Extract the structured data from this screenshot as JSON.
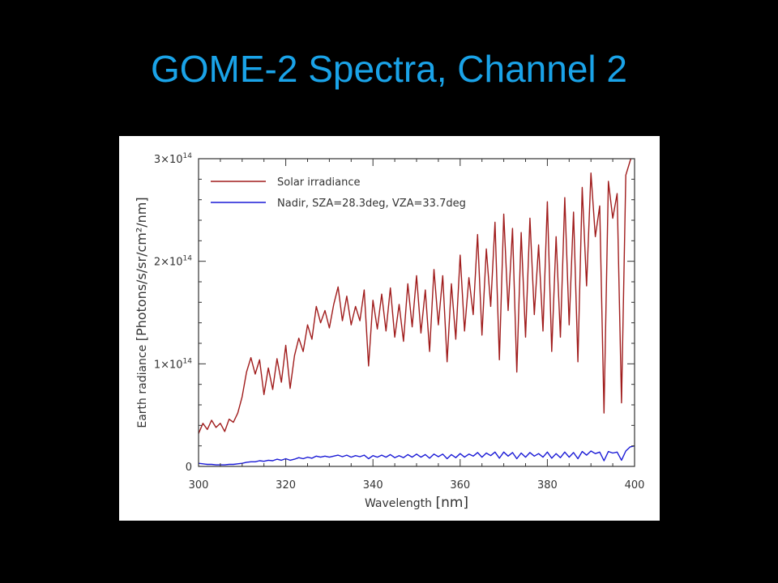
{
  "slide": {
    "title": "GOME-2 Spectra, Channel 2"
  },
  "chart_data": {
    "type": "line",
    "xlabel_main": "Wavelength ",
    "xlabel_unit": "[nm]",
    "ylabel_main": "Earth radiance ",
    "ylabel_unit": "[Photons/s/sr/cm²/nm]",
    "xlim": [
      300,
      400
    ],
    "ylim": [
      0,
      300000000000000.0
    ],
    "x_ticks": [
      300,
      320,
      340,
      360,
      380,
      400
    ],
    "y_ticks": [
      {
        "value": 0,
        "mant": "0",
        "exp": ""
      },
      {
        "value": 100000000000000.0,
        "mant": "1×10",
        "exp": "14"
      },
      {
        "value": 200000000000000.0,
        "mant": "2×10",
        "exp": "14"
      },
      {
        "value": 300000000000000.0,
        "mant": "3×10",
        "exp": "14"
      }
    ],
    "legend": {
      "placement": "top-left"
    },
    "grid": false,
    "series": [
      {
        "name": "Solar irradiance",
        "color": "#a01c1c",
        "x": [
          300,
          301,
          302,
          303,
          304,
          305,
          306,
          307,
          308,
          309,
          310,
          311,
          312,
          313,
          314,
          315,
          316,
          317,
          318,
          319,
          320,
          321,
          322,
          323,
          324,
          325,
          326,
          327,
          328,
          329,
          330,
          331,
          332,
          333,
          334,
          335,
          336,
          337,
          338,
          339,
          340,
          341,
          342,
          343,
          344,
          345,
          346,
          347,
          348,
          349,
          350,
          351,
          352,
          353,
          354,
          355,
          356,
          357,
          358,
          359,
          360,
          361,
          362,
          363,
          364,
          365,
          366,
          367,
          368,
          369,
          370,
          371,
          372,
          373,
          374,
          375,
          376,
          377,
          378,
          379,
          380,
          381,
          382,
          383,
          384,
          385,
          386,
          387,
          388,
          389,
          390,
          391,
          392,
          393,
          394,
          395,
          396,
          397,
          398,
          399,
          400
        ],
        "values": [
          32000000000000.0,
          42000000000000.0,
          36000000000000.0,
          45000000000000.0,
          38000000000000.0,
          42000000000000.0,
          34000000000000.0,
          46000000000000.0,
          43000000000000.0,
          52000000000000.0,
          68000000000000.0,
          92000000000000.0,
          106000000000000.0,
          90000000000000.0,
          104000000000000.0,
          70000000000000.0,
          96000000000000.0,
          75000000000000.0,
          105000000000000.0,
          82000000000000.0,
          118000000000000.0,
          76000000000000.0,
          108000000000000.0,
          125000000000000.0,
          112000000000000.0,
          138000000000000.0,
          124000000000000.0,
          156000000000000.0,
          140000000000000.0,
          152000000000000.0,
          135000000000000.0,
          158000000000000.0,
          175000000000000.0,
          142000000000000.0,
          166000000000000.0,
          138000000000000.0,
          156000000000000.0,
          142000000000000.0,
          172000000000000.0,
          98000000000000.0,
          162000000000000.0,
          134000000000000.0,
          168000000000000.0,
          132000000000000.0,
          174000000000000.0,
          126000000000000.0,
          158000000000000.0,
          122000000000000.0,
          178000000000000.0,
          136000000000000.0,
          186000000000000.0,
          130000000000000.0,
          172000000000000.0,
          112000000000000.0,
          192000000000000.0,
          138000000000000.0,
          186000000000000.0,
          102000000000000.0,
          178000000000000.0,
          124000000000000.0,
          206000000000000.0,
          132000000000000.0,
          184000000000000.0,
          148000000000000.0,
          226000000000000.0,
          128000000000000.0,
          212000000000000.0,
          156000000000000.0,
          238000000000000.0,
          104000000000000.0,
          246000000000000.0,
          152000000000000.0,
          232000000000000.0,
          92000000000000.0,
          228000000000000.0,
          126000000000000.0,
          242000000000000.0,
          148000000000000.0,
          216000000000000.0,
          132000000000000.0,
          258000000000000.0,
          112000000000000.0,
          224000000000000.0,
          126000000000000.0,
          262000000000000.0,
          138000000000000.0,
          248000000000000.0,
          102000000000000.0,
          272000000000000.0,
          176000000000000.0,
          286000000000000.0,
          224000000000000.0,
          254000000000000.0,
          52000000000000.0,
          278000000000000.0,
          242000000000000.0,
          266000000000000.0,
          62000000000000.0,
          284000000000000.0,
          298000000000000.0,
          310000000000000.0
        ]
      },
      {
        "name": "Nadir, SZA=28.3deg, VZA=33.7deg",
        "color": "#1a1ad6",
        "x": [
          300,
          301,
          302,
          303,
          304,
          305,
          306,
          307,
          308,
          309,
          310,
          311,
          312,
          313,
          314,
          315,
          316,
          317,
          318,
          319,
          320,
          321,
          322,
          323,
          324,
          325,
          326,
          327,
          328,
          329,
          330,
          331,
          332,
          333,
          334,
          335,
          336,
          337,
          338,
          339,
          340,
          341,
          342,
          343,
          344,
          345,
          346,
          347,
          348,
          349,
          350,
          351,
          352,
          353,
          354,
          355,
          356,
          357,
          358,
          359,
          360,
          361,
          362,
          363,
          364,
          365,
          366,
          367,
          368,
          369,
          370,
          371,
          372,
          373,
          374,
          375,
          376,
          377,
          378,
          379,
          380,
          381,
          382,
          383,
          384,
          385,
          386,
          387,
          388,
          389,
          390,
          391,
          392,
          393,
          394,
          395,
          396,
          397,
          398,
          399,
          400
        ],
        "values": [
          3000000000000.0,
          2500000000000.0,
          2000000000000.0,
          2000000000000.0,
          1500000000000.0,
          1500000000000.0,
          1500000000000.0,
          2000000000000.0,
          2000000000000.0,
          2500000000000.0,
          3000000000000.0,
          4000000000000.0,
          4500000000000.0,
          4500000000000.0,
          5500000000000.0,
          5000000000000.0,
          6000000000000.0,
          5500000000000.0,
          7000000000000.0,
          6000000000000.0,
          7500000000000.0,
          6000000000000.0,
          7000000000000.0,
          8500000000000.0,
          7500000000000.0,
          9000000000000.0,
          8000000000000.0,
          10000000000000.0,
          9000000000000.0,
          10000000000000.0,
          9000000000000.0,
          10000000000000.0,
          11000000000000.0,
          9500000000000.0,
          11000000000000.0,
          9000000000000.0,
          10500000000000.0,
          9500000000000.0,
          11000000000000.0,
          7500000000000.0,
          10500000000000.0,
          9000000000000.0,
          11000000000000.0,
          9000000000000.0,
          11500000000000.0,
          8500000000000.0,
          10500000000000.0,
          8500000000000.0,
          11500000000000.0,
          9000000000000.0,
          12000000000000.0,
          9000000000000.0,
          11500000000000.0,
          8000000000000.0,
          12000000000000.0,
          9500000000000.0,
          12000000000000.0,
          7500000000000.0,
          11500000000000.0,
          8500000000000.0,
          12500000000000.0,
          9000000000000.0,
          12000000000000.0,
          10000000000000.0,
          13500000000000.0,
          9000000000000.0,
          13000000000000.0,
          10500000000000.0,
          14000000000000.0,
          8000000000000.0,
          14000000000000.0,
          10000000000000.0,
          13500000000000.0,
          7500000000000.0,
          13000000000000.0,
          9000000000000.0,
          13500000000000.0,
          10000000000000.0,
          12500000000000.0,
          9000000000000.0,
          14000000000000.0,
          8000000000000.0,
          12500000000000.0,
          8500000000000.0,
          14000000000000.0,
          9000000000000.0,
          13500000000000.0,
          7500000000000.0,
          14500000000000.0,
          11000000000000.0,
          15000000000000.0,
          12500000000000.0,
          14000000000000.0,
          5500000000000.0,
          14500000000000.0,
          13000000000000.0,
          14000000000000.0,
          6000000000000.0,
          15000000000000.0,
          19000000000000.0,
          20000000000000.0
        ]
      }
    ]
  }
}
